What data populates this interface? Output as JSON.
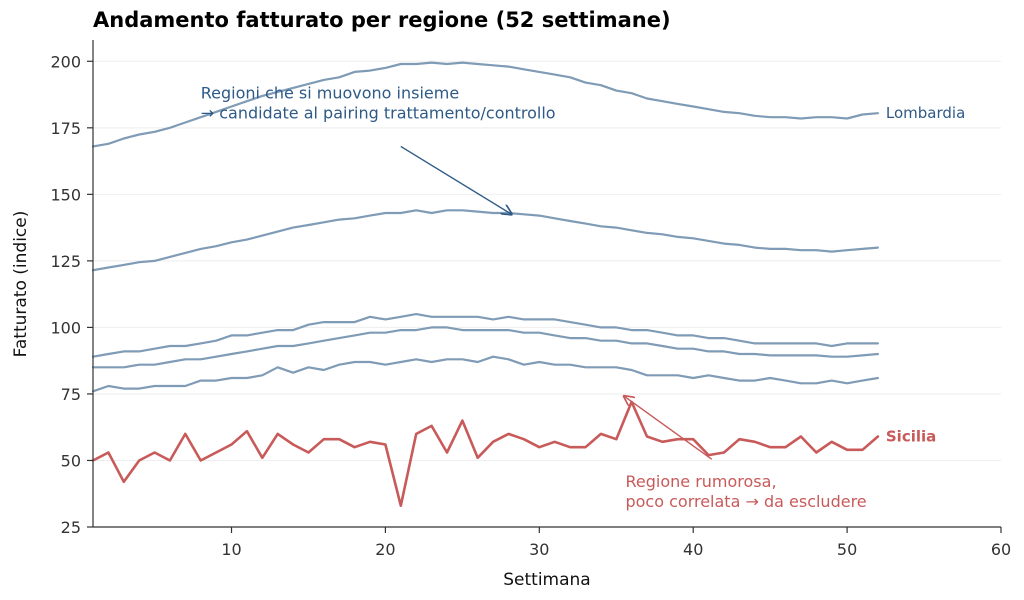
{
  "chart_data": {
    "type": "line",
    "title": "Andamento fatturato per regione (52 settimane)",
    "xlabel": "Settimana",
    "ylabel": "Fatturato (indice)",
    "xlim": [
      1,
      60
    ],
    "ylim": [
      25,
      208
    ],
    "xticks": [
      10,
      20,
      30,
      40,
      50,
      60
    ],
    "yticks": [
      25,
      50,
      75,
      100,
      125,
      150,
      175,
      200
    ],
    "grid": "horizontal",
    "colors": {
      "background": "#7f9bb5",
      "highlight": "#c85a5a",
      "annotation_bg": "#2e5a87",
      "axis": "#333333",
      "grid": "#eeeeee"
    },
    "series": [
      {
        "name": "Lombardia",
        "role": "background",
        "label_end": true,
        "x": [
          1,
          2,
          3,
          4,
          5,
          6,
          7,
          8,
          9,
          10,
          11,
          12,
          13,
          14,
          15,
          16,
          17,
          18,
          19,
          20,
          21,
          22,
          23,
          24,
          25,
          26,
          27,
          28,
          29,
          30,
          31,
          32,
          33,
          34,
          35,
          36,
          37,
          38,
          39,
          40,
          41,
          42,
          43,
          44,
          45,
          46,
          47,
          48,
          49,
          50,
          51,
          52
        ],
        "values": [
          168,
          169,
          171,
          172.5,
          173.5,
          175,
          177,
          179,
          181,
          183,
          185,
          187,
          188.5,
          190,
          191.5,
          193,
          194,
          196,
          196.5,
          197.5,
          199,
          199,
          199.5,
          199,
          199.5,
          199,
          198.5,
          198,
          197,
          196,
          195,
          194,
          192,
          191,
          189,
          188,
          186,
          185,
          184,
          183,
          182,
          181,
          180.5,
          179.5,
          179,
          179,
          178.5,
          179,
          179,
          178.5,
          180,
          180.5
        ]
      },
      {
        "role": "background",
        "x": [
          1,
          2,
          3,
          4,
          5,
          6,
          7,
          8,
          9,
          10,
          11,
          12,
          13,
          14,
          15,
          16,
          17,
          18,
          19,
          20,
          21,
          22,
          23,
          24,
          25,
          26,
          27,
          28,
          29,
          30,
          31,
          32,
          33,
          34,
          35,
          36,
          37,
          38,
          39,
          40,
          41,
          42,
          43,
          44,
          45,
          46,
          47,
          48,
          49,
          50,
          51,
          52
        ],
        "values": [
          121.5,
          122.5,
          123.5,
          124.5,
          125,
          126.5,
          128,
          129.5,
          130.5,
          132,
          133,
          134.5,
          136,
          137.5,
          138.5,
          139.5,
          140.5,
          141,
          142,
          143,
          143,
          144,
          143,
          144,
          144,
          143.5,
          143,
          143,
          142.5,
          142,
          141,
          140,
          139,
          138,
          137.5,
          136.5,
          135.5,
          135,
          134,
          133.5,
          132.5,
          131.5,
          131,
          130,
          129.5,
          129.5,
          129,
          129,
          128.5,
          129,
          129.5,
          130
        ]
      },
      {
        "role": "background",
        "x": [
          1,
          2,
          3,
          4,
          5,
          6,
          7,
          8,
          9,
          10,
          11,
          12,
          13,
          14,
          15,
          16,
          17,
          18,
          19,
          20,
          21,
          22,
          23,
          24,
          25,
          26,
          27,
          28,
          29,
          30,
          31,
          32,
          33,
          34,
          35,
          36,
          37,
          38,
          39,
          40,
          41,
          42,
          43,
          44,
          45,
          46,
          47,
          48,
          49,
          50,
          51,
          52
        ],
        "values": [
          89,
          90,
          91,
          91,
          92,
          93,
          93,
          94,
          95,
          97,
          97,
          98,
          99,
          99,
          101,
          102,
          102,
          102,
          104,
          103,
          104,
          105,
          104,
          104,
          104,
          104,
          103,
          104,
          103,
          103,
          103,
          102,
          101,
          100,
          100,
          99,
          99,
          98,
          97,
          97,
          96,
          96,
          95,
          94,
          94,
          94,
          94,
          94,
          93,
          94,
          94,
          94
        ]
      },
      {
        "role": "background",
        "x": [
          1,
          2,
          3,
          4,
          5,
          6,
          7,
          8,
          9,
          10,
          11,
          12,
          13,
          14,
          15,
          16,
          17,
          18,
          19,
          20,
          21,
          22,
          23,
          24,
          25,
          26,
          27,
          28,
          29,
          30,
          31,
          32,
          33,
          34,
          35,
          36,
          37,
          38,
          39,
          40,
          41,
          42,
          43,
          44,
          45,
          46,
          47,
          48,
          49,
          50,
          51,
          52
        ],
        "values": [
          85,
          85,
          85,
          86,
          86,
          87,
          88,
          88,
          89,
          90,
          91,
          92,
          93,
          93,
          94,
          95,
          96,
          97,
          98,
          98,
          99,
          99,
          100,
          100,
          99,
          99,
          99,
          99,
          98,
          98,
          97,
          96,
          96,
          95,
          95,
          94,
          94,
          93,
          92,
          92,
          91,
          91,
          90,
          90,
          89.5,
          89.5,
          89.5,
          89.5,
          89,
          89,
          89.5,
          90
        ]
      },
      {
        "role": "background",
        "x": [
          1,
          2,
          3,
          4,
          5,
          6,
          7,
          8,
          9,
          10,
          11,
          12,
          13,
          14,
          15,
          16,
          17,
          18,
          19,
          20,
          21,
          22,
          23,
          24,
          25,
          26,
          27,
          28,
          29,
          30,
          31,
          32,
          33,
          34,
          35,
          36,
          37,
          38,
          39,
          40,
          41,
          42,
          43,
          44,
          45,
          46,
          47,
          48,
          49,
          50,
          51,
          52
        ],
        "values": [
          76,
          78,
          77,
          77,
          78,
          78,
          78,
          80,
          80,
          81,
          81,
          82,
          85,
          83,
          85,
          84,
          86,
          87,
          87,
          86,
          87,
          88,
          87,
          88,
          88,
          87,
          89,
          88,
          86,
          87,
          86,
          86,
          85,
          85,
          85,
          84,
          82,
          82,
          82,
          81,
          82,
          81,
          80,
          80,
          81,
          80,
          79,
          79,
          80,
          79,
          80,
          81
        ]
      },
      {
        "name": "Sicilia",
        "role": "highlight",
        "label_end": true,
        "x": [
          1,
          2,
          3,
          4,
          5,
          6,
          7,
          8,
          9,
          10,
          11,
          12,
          13,
          14,
          15,
          16,
          17,
          18,
          19,
          20,
          21,
          22,
          23,
          24,
          25,
          26,
          27,
          28,
          29,
          30,
          31,
          32,
          33,
          34,
          35,
          36,
          37,
          38,
          39,
          40,
          41,
          42,
          43,
          44,
          45,
          46,
          47,
          48,
          49,
          50,
          51,
          52
        ],
        "values": [
          50,
          53,
          42,
          50,
          53,
          50,
          60,
          50,
          53,
          56,
          61,
          51,
          60,
          56,
          53,
          58,
          58,
          55,
          57,
          56,
          33,
          60,
          63,
          53,
          65,
          51,
          57,
          60,
          58,
          55,
          57,
          55,
          55,
          60,
          58,
          72,
          59,
          57,
          58,
          58,
          52,
          53,
          58,
          57,
          55,
          55,
          59,
          53,
          57,
          54,
          54,
          59
        ]
      }
    ],
    "annotations": [
      {
        "id": "corr",
        "role": "background",
        "lines": [
          "Regioni che si muovono insieme",
          "→ candidate al pairing trattamento/controllo"
        ],
        "text_at": [
          8,
          186
        ],
        "arrow_from": [
          21,
          168
        ],
        "arrow_to": [
          28.2,
          142.5
        ]
      },
      {
        "id": "noisy",
        "role": "highlight",
        "lines": [
          "Regione rumorosa,",
          "poco correlata → da escludere"
        ],
        "text_at": [
          35.6,
          40
        ],
        "arrow_from": [
          41.2,
          50.5
        ],
        "arrow_to": [
          35.5,
          74.2
        ]
      }
    ]
  }
}
